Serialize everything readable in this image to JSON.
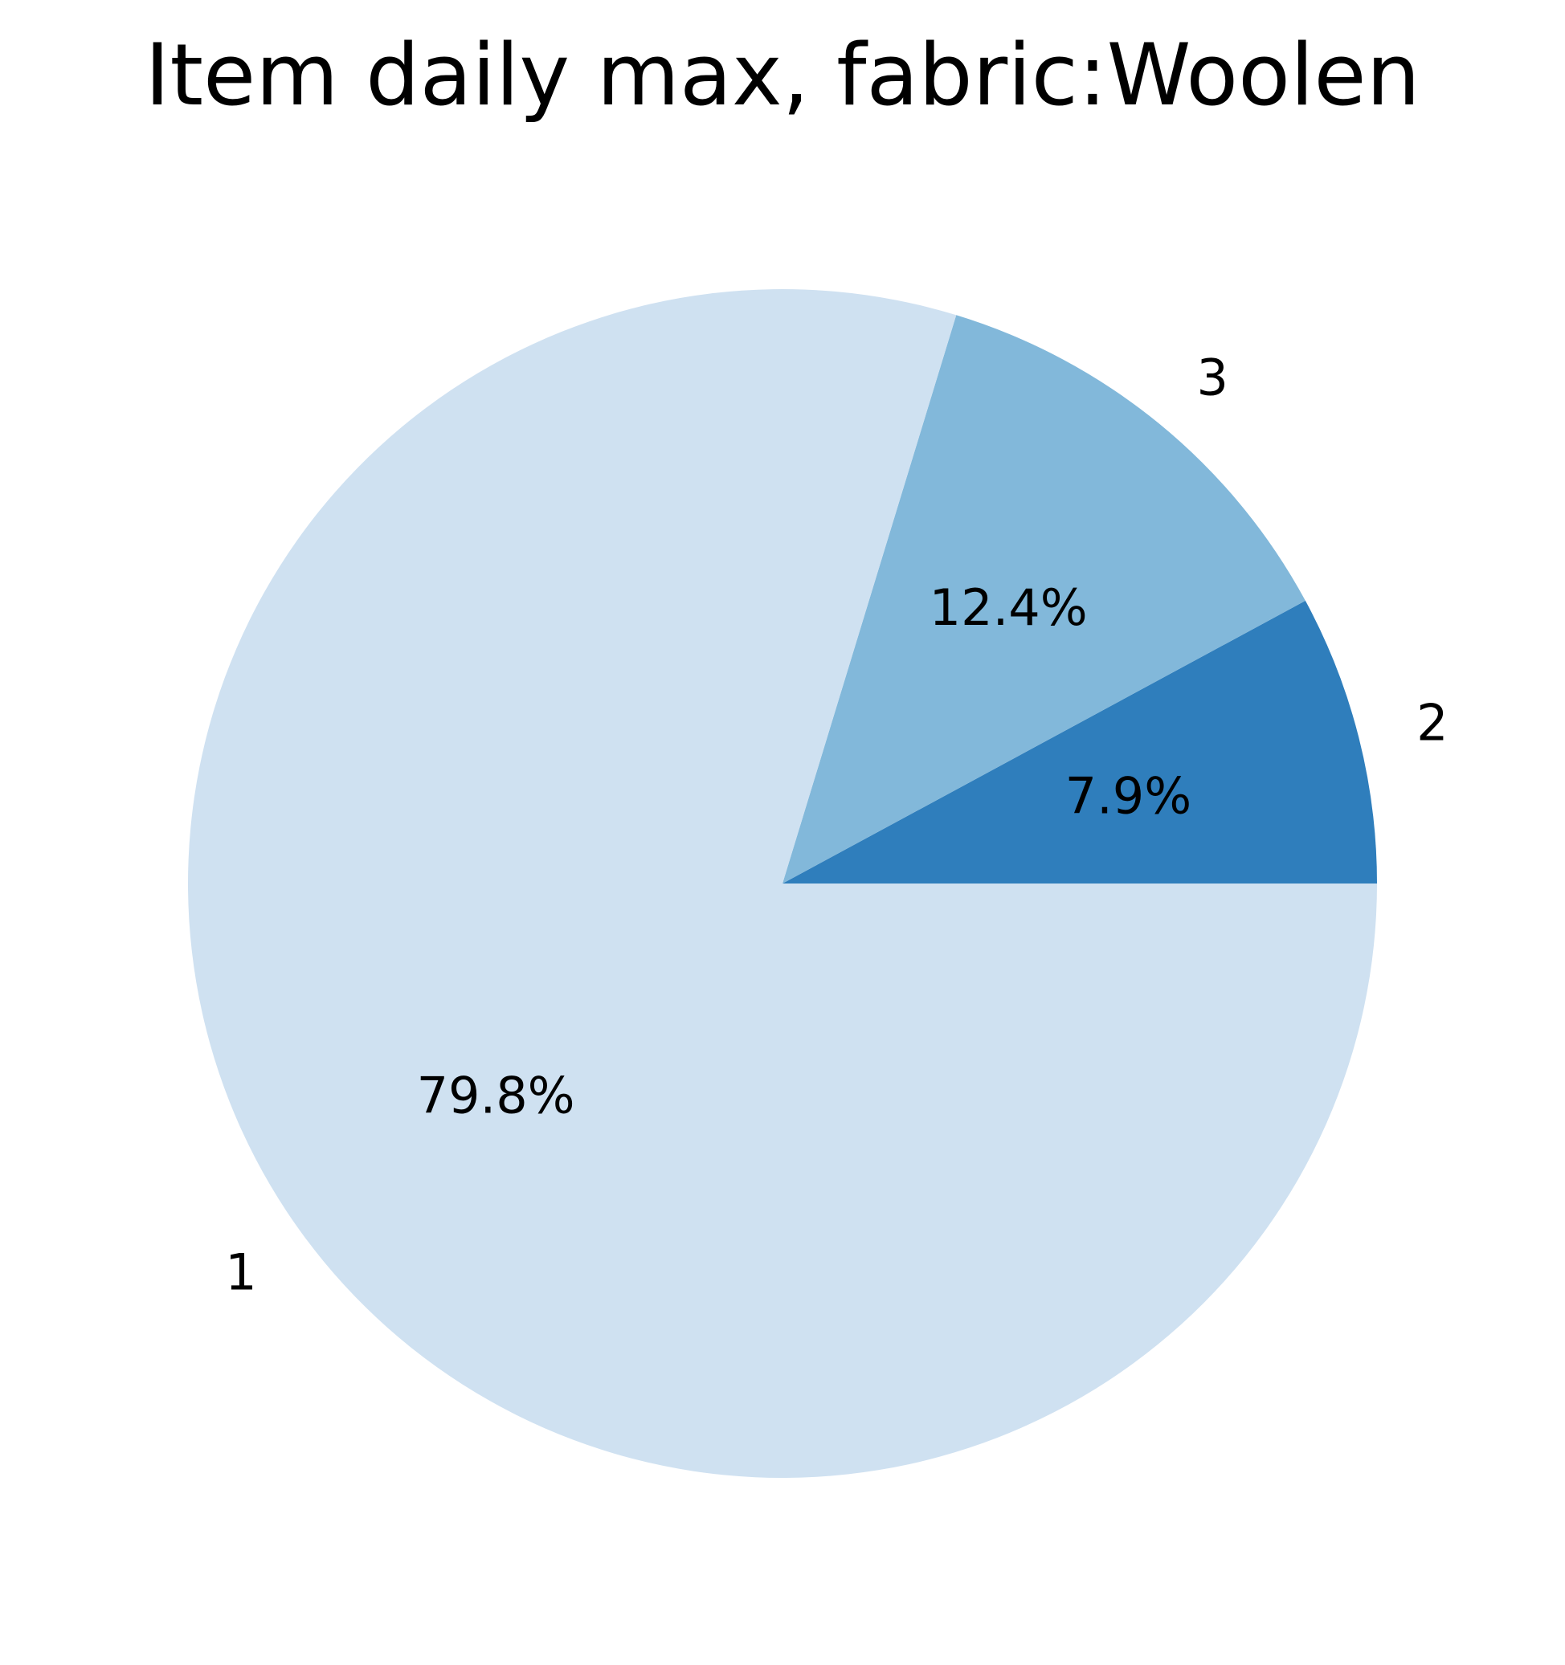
{
  "chart_data": {
    "type": "pie",
    "title": "Item daily max, fabric:Woolen",
    "slices": [
      {
        "label": "2",
        "percent": 7.9,
        "percent_label": "7.9%",
        "color": "#2f7ebc"
      },
      {
        "label": "3",
        "percent": 12.4,
        "percent_label": "12.4%",
        "color": "#82b8da"
      },
      {
        "label": "1",
        "percent": 79.8,
        "percent_label": "79.8%",
        "color": "#cfe1f1"
      }
    ],
    "start_angle_deg": 0,
    "direction": "counterclockwise",
    "legend": "none"
  }
}
